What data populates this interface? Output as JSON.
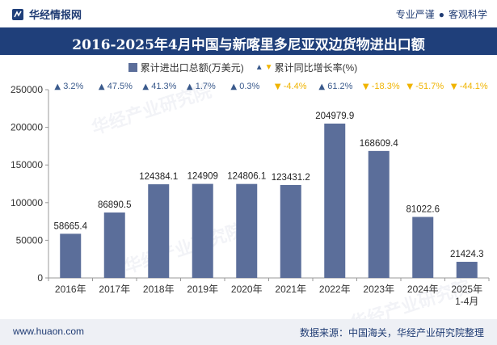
{
  "header": {
    "brand": "华经情报网",
    "tag_left": "专业严谨",
    "tag_sep": "●",
    "tag_right": "客观科学"
  },
  "watermark": "华经产业研究院",
  "footer": {
    "site": "www.huaon.com",
    "source": "数据来源：中国海关，华经产业研究院整理"
  },
  "colors": {
    "bar": "#5b6e9a",
    "title_bg": "#1f3f7a",
    "up": "#3a5a8c",
    "down": "#f0b400"
  },
  "chart_data": {
    "type": "bar",
    "title": "2016-2025年4月中国与新喀里多尼亚双边货物进出口额",
    "categories": [
      "2016年",
      "2017年",
      "2018年",
      "2019年",
      "2020年",
      "2021年",
      "2022年",
      "2023年",
      "2024年",
      "2025年1-4月"
    ],
    "series": [
      {
        "name": "累计进出口总额(万美元)",
        "values": [
          58665.4,
          86890.5,
          124384.1,
          124909,
          124806.1,
          123431.2,
          204979.9,
          168609.4,
          81022.6,
          21424.3
        ],
        "labels": [
          "58665.4",
          "86890.5",
          "124384.1",
          "124909",
          "124806.1",
          "123431.2",
          "204979.9",
          "168609.4",
          "81022.6",
          "21424.3"
        ]
      },
      {
        "name": "累计同比增长率(%)",
        "values": [
          3.2,
          47.5,
          41.3,
          1.7,
          0.3,
          -4.4,
          61.2,
          -18.3,
          -51.7,
          -44.1
        ],
        "labels": [
          "3.2%",
          "47.5%",
          "41.3%",
          "1.7%",
          "0.3%",
          "-4.4%",
          "61.2%",
          "-18.3%",
          "-51.7%",
          "-44.1%"
        ]
      }
    ],
    "ylim": [
      0,
      250000
    ],
    "yticks": [
      "0",
      "50000",
      "100000",
      "150000",
      "200000",
      "250000"
    ],
    "legend_position": "top-center",
    "grid": false
  }
}
